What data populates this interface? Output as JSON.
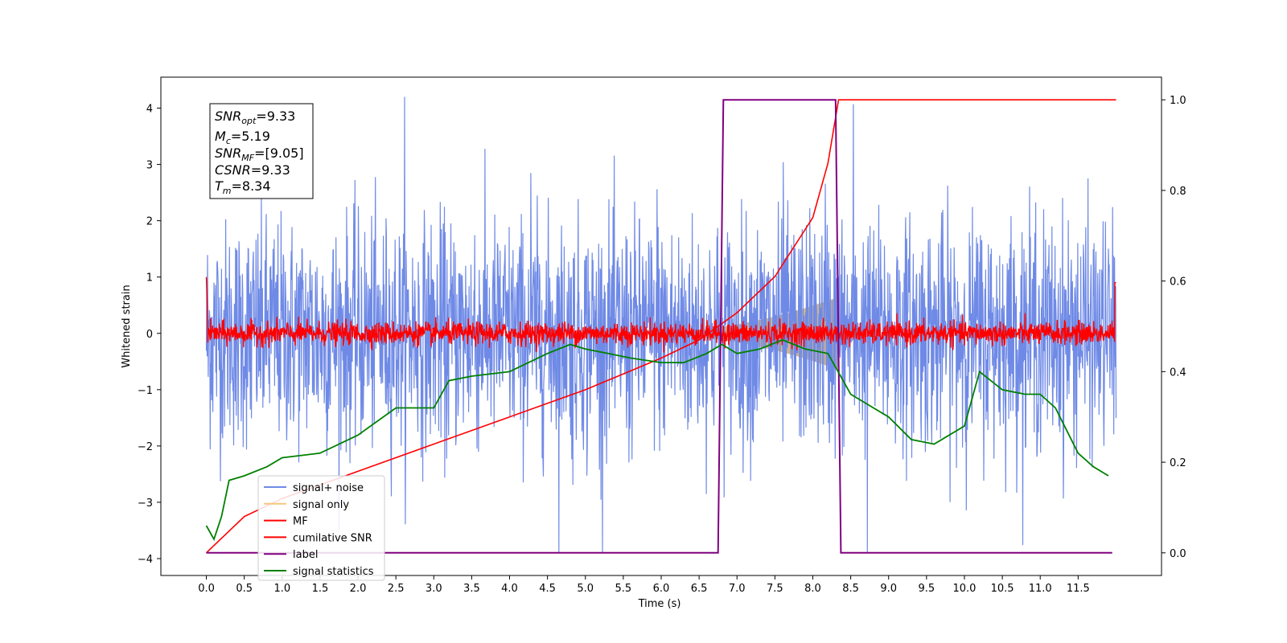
{
  "chart_data": {
    "type": "line",
    "title": "",
    "xlabel": "Time (s)",
    "ylabel": "Whitened strain",
    "xlim": [
      -0.6,
      12.6
    ],
    "ylim": [
      -4.3,
      4.55
    ],
    "y2lim": [
      -0.05,
      1.05
    ],
    "x_ticks": [
      "0.0",
      "0.5",
      "1.0",
      "1.5",
      "2.0",
      "2.5",
      "3.0",
      "3.5",
      "4.0",
      "4.5",
      "5.0",
      "5.5",
      "6.0",
      "6.5",
      "7.0",
      "7.5",
      "8.0",
      "8.5",
      "9.0",
      "9.5",
      "10.0",
      "10.5",
      "11.0",
      "11.5"
    ],
    "y_ticks": [
      "4",
      "3",
      "2",
      "1",
      "0",
      "−1",
      "−2",
      "−3",
      "−4"
    ],
    "y2_ticks": [
      "1.0",
      "0.8",
      "0.6",
      "0.4",
      "0.2",
      "0.0"
    ],
    "grid": false,
    "legend_position": "lower-left",
    "annotation": {
      "snr_opt": {
        "name": "SNR",
        "sub": "opt",
        "value": "=9.33"
      },
      "mc": {
        "name": "M",
        "sub": "c",
        "value": "=5.19"
      },
      "snr_mf": {
        "name": "SNR",
        "sub": "MF",
        "value": "=[9.05]"
      },
      "csnr": {
        "name": "CSNR",
        "sub": "",
        "value": "=9.33"
      },
      "tm": {
        "name": "T",
        "sub": "m",
        "value": "=8.34"
      }
    },
    "series": [
      {
        "name": "signal+ noise",
        "color": "#6f8ae6",
        "axis": "left",
        "t_range": [
          0.0,
          12.0
        ],
        "std": 1.0,
        "min": -3.9,
        "max": 4.2
      },
      {
        "name": "signal only",
        "color": "#f5c77e",
        "axis": "left",
        "t_range": [
          5.5,
          8.34
        ],
        "envelope_end": 0.65
      },
      {
        "name": "MF",
        "color": "#ff0000",
        "axis": "left",
        "t_range": [
          0.0,
          12.0
        ],
        "level": 0.0,
        "spread": 0.1
      },
      {
        "name": "cumilative SNR",
        "color": "#ff0000",
        "axis": "right",
        "x": [
          0.0,
          0.5,
          1.0,
          2.0,
          3.0,
          4.0,
          5.0,
          6.0,
          6.5,
          7.0,
          7.5,
          8.0,
          8.2,
          8.34,
          12.0
        ],
        "y": [
          0.0,
          0.08,
          0.12,
          0.18,
          0.24,
          0.3,
          0.36,
          0.43,
          0.47,
          0.53,
          0.61,
          0.74,
          0.86,
          1.0,
          1.0
        ]
      },
      {
        "name": "label",
        "color": "#800080",
        "axis": "right",
        "x": [
          0.0,
          6.75,
          6.82,
          8.3,
          8.37,
          11.95
        ],
        "y": [
          0.0,
          0.0,
          1.0,
          1.0,
          0.0,
          0.0
        ]
      },
      {
        "name": "signal statistics",
        "color": "#008000",
        "axis": "right",
        "x": [
          0.0,
          0.1,
          0.2,
          0.3,
          0.5,
          0.8,
          1.0,
          1.5,
          2.0,
          2.5,
          3.0,
          3.2,
          3.5,
          4.0,
          4.5,
          4.8,
          5.0,
          5.3,
          5.6,
          6.0,
          6.3,
          6.6,
          6.8,
          7.0,
          7.3,
          7.6,
          7.9,
          8.2,
          8.5,
          8.8,
          9.0,
          9.3,
          9.6,
          10.0,
          10.2,
          10.5,
          10.8,
          11.0,
          11.2,
          11.5,
          11.7,
          11.9
        ],
        "y": [
          0.06,
          0.03,
          0.08,
          0.16,
          0.17,
          0.19,
          0.21,
          0.22,
          0.26,
          0.32,
          0.32,
          0.38,
          0.39,
          0.4,
          0.44,
          0.46,
          0.45,
          0.44,
          0.43,
          0.42,
          0.42,
          0.44,
          0.46,
          0.44,
          0.45,
          0.47,
          0.45,
          0.44,
          0.35,
          0.32,
          0.3,
          0.25,
          0.24,
          0.28,
          0.4,
          0.36,
          0.35,
          0.35,
          0.32,
          0.22,
          0.19,
          0.17
        ]
      }
    ]
  }
}
